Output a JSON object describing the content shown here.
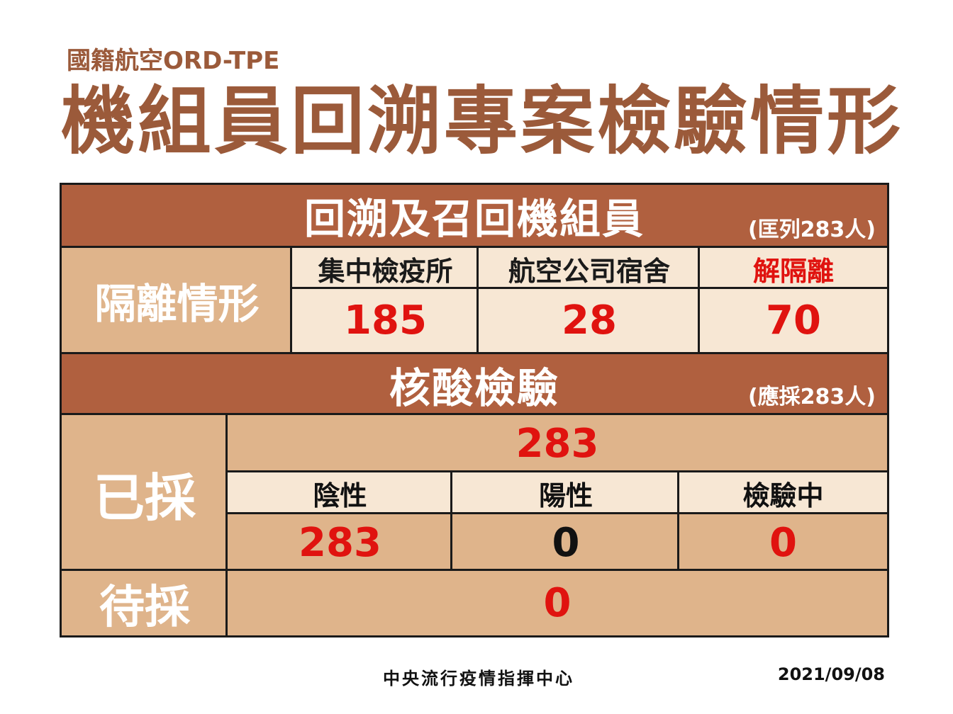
{
  "header": {
    "subtitle": "國籍航空ORD-TPE",
    "title": "機組員回溯專案檢驗情形"
  },
  "isolation": {
    "section_title": "回溯及召回機組員",
    "section_note": "(匡列283人)",
    "side_label": "隔離情形",
    "columns": [
      {
        "label": "集中檢疫所",
        "value": "185"
      },
      {
        "label": "航空公司宿舍",
        "value": "28"
      },
      {
        "label": "解隔離",
        "value": "70"
      }
    ]
  },
  "testing": {
    "section_title": "核酸檢驗",
    "section_note": "(應採283人)",
    "sampled_label": "已採",
    "sampled_total": "283",
    "columns": [
      {
        "label": "陰性",
        "value": "283"
      },
      {
        "label": "陽性",
        "value": "0"
      },
      {
        "label": "檢驗中",
        "value": "0"
      }
    ],
    "pending_label": "待採",
    "pending_value": "0"
  },
  "footer": {
    "org": "中央流行疫情指揮中心",
    "date": "2021/09/08"
  },
  "colors": {
    "title_brown": "#9b5a3a",
    "header_brown": "#b0603f",
    "tan": "#dfb48b",
    "light": "#f7e7d4",
    "red": "#e0130f"
  }
}
